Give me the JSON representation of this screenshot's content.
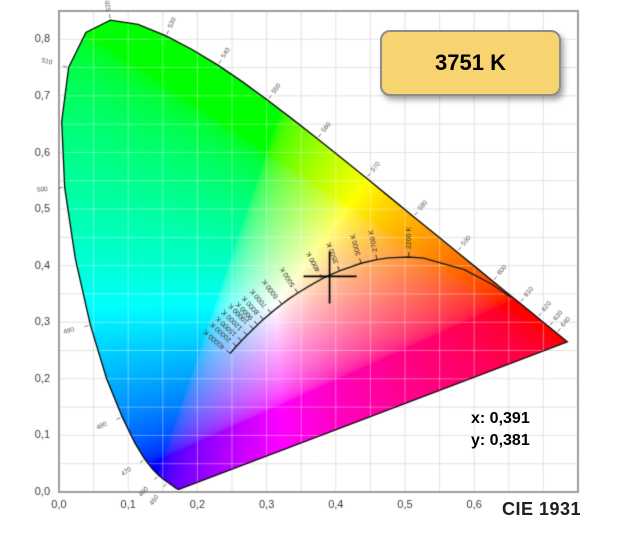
{
  "badge": {
    "label": "3751 K"
  },
  "readout": {
    "x_label": "x: 0,391",
    "y_label": "y: 0,381"
  },
  "footer": {
    "label": "CIE 1931"
  },
  "colors": {
    "badge_bg": "#F8D470",
    "badge_border": "#8C8C8C",
    "grid": "#E3E3E3",
    "frame": "#9E9E9E",
    "locus_outline": "#0A0A0A",
    "planckian_line": "#1B1B1B"
  },
  "chart_data": {
    "type": "area",
    "subtype": "cie-1931-chromaticity-diagram",
    "title": "CIE 1931",
    "xlabel": "",
    "ylabel": "",
    "xlim": [
      0,
      0.75
    ],
    "ylim": [
      0,
      0.85
    ],
    "grid_step": 0.05,
    "grid_on": true,
    "x_tick_values": [
      0,
      0.1,
      0.2,
      0.3,
      0.4,
      0.5,
      0.6
    ],
    "x_tick_labels": [
      "0,0",
      "0,1",
      "0,2",
      "0,3",
      "0,4",
      "0,5",
      "0,6"
    ],
    "y_tick_values": [
      0,
      0.1,
      0.2,
      0.3,
      0.4,
      0.5,
      0.6,
      0.7,
      0.8
    ],
    "y_tick_labels": [
      "0,0",
      "0,1",
      "0,2",
      "0,3",
      "0,4",
      "0,5",
      "0,6",
      "0,7",
      "0,8"
    ],
    "marked_point": {
      "x": 0.391,
      "y": 0.381,
      "cct_label": "3751 K"
    },
    "spectral_locus": [
      [
        380,
        0.1741,
        0.005
      ],
      [
        385,
        0.174,
        0.005
      ],
      [
        390,
        0.1738,
        0.0049
      ],
      [
        395,
        0.1736,
        0.0049
      ],
      [
        400,
        0.1733,
        0.0048
      ],
      [
        405,
        0.173,
        0.0048
      ],
      [
        410,
        0.1726,
        0.0048
      ],
      [
        415,
        0.1721,
        0.0048
      ],
      [
        420,
        0.1714,
        0.0051
      ],
      [
        425,
        0.1703,
        0.0058
      ],
      [
        430,
        0.1689,
        0.0069
      ],
      [
        435,
        0.1669,
        0.0086
      ],
      [
        440,
        0.1644,
        0.0109
      ],
      [
        445,
        0.1611,
        0.0138
      ],
      [
        450,
        0.1566,
        0.0177
      ],
      [
        455,
        0.151,
        0.0227
      ],
      [
        460,
        0.144,
        0.0297
      ],
      [
        465,
        0.1355,
        0.0399
      ],
      [
        470,
        0.1241,
        0.0578
      ],
      [
        475,
        0.1096,
        0.0868
      ],
      [
        480,
        0.0913,
        0.1327
      ],
      [
        485,
        0.0687,
        0.2007
      ],
      [
        490,
        0.0454,
        0.295
      ],
      [
        495,
        0.0235,
        0.4127
      ],
      [
        500,
        0.0082,
        0.5384
      ],
      [
        505,
        0.0039,
        0.6548
      ],
      [
        510,
        0.0139,
        0.7502
      ],
      [
        515,
        0.0389,
        0.812
      ],
      [
        520,
        0.0743,
        0.8338
      ],
      [
        525,
        0.1142,
        0.8262
      ],
      [
        530,
        0.1547,
        0.8059
      ],
      [
        535,
        0.1929,
        0.7816
      ],
      [
        540,
        0.2296,
        0.7543
      ],
      [
        545,
        0.2658,
        0.7243
      ],
      [
        550,
        0.3016,
        0.6923
      ],
      [
        555,
        0.3373,
        0.6589
      ],
      [
        560,
        0.3731,
        0.6245
      ],
      [
        565,
        0.4087,
        0.5896
      ],
      [
        570,
        0.4441,
        0.5547
      ],
      [
        575,
        0.4788,
        0.5202
      ],
      [
        580,
        0.5125,
        0.4866
      ],
      [
        585,
        0.5448,
        0.4544
      ],
      [
        590,
        0.5752,
        0.4242
      ],
      [
        595,
        0.6029,
        0.3965
      ],
      [
        600,
        0.627,
        0.3725
      ],
      [
        605,
        0.6482,
        0.3514
      ],
      [
        610,
        0.6658,
        0.334
      ],
      [
        615,
        0.6801,
        0.3197
      ],
      [
        620,
        0.6915,
        0.3083
      ],
      [
        625,
        0.7006,
        0.2993
      ],
      [
        630,
        0.7079,
        0.292
      ],
      [
        635,
        0.714,
        0.2859
      ],
      [
        640,
        0.719,
        0.2809
      ],
      [
        645,
        0.723,
        0.277
      ],
      [
        650,
        0.726,
        0.274
      ],
      [
        660,
        0.73,
        0.27
      ],
      [
        670,
        0.732,
        0.268
      ],
      [
        680,
        0.7334,
        0.2666
      ],
      [
        700,
        0.7347,
        0.2653
      ]
    ],
    "wavelength_labels": [
      450,
      460,
      470,
      480,
      490,
      500,
      510,
      520,
      530,
      540,
      550,
      560,
      570,
      580,
      590,
      600,
      610,
      620,
      630,
      640
    ],
    "planckian_locus": [
      [
        1000,
        0.6528,
        0.3444
      ],
      [
        1200,
        0.6249,
        0.3676
      ],
      [
        1500,
        0.5857,
        0.3931
      ],
      [
        2000,
        0.5269,
        0.4133
      ],
      [
        2200,
        0.5054,
        0.4152
      ],
      [
        2500,
        0.4765,
        0.4137
      ],
      [
        2700,
        0.4593,
        0.4106
      ],
      [
        3000,
        0.4366,
        0.4042
      ],
      [
        3500,
        0.4053,
        0.3909
      ],
      [
        3751,
        0.3922,
        0.3837
      ],
      [
        4000,
        0.3805,
        0.3769
      ],
      [
        4500,
        0.3607,
        0.3634
      ],
      [
        5000,
        0.345,
        0.3517
      ],
      [
        5500,
        0.3323,
        0.3412
      ],
      [
        6000,
        0.322,
        0.3318
      ],
      [
        6500,
        0.3135,
        0.3237
      ],
      [
        7000,
        0.3064,
        0.3165
      ],
      [
        8000,
        0.2952,
        0.3048
      ],
      [
        9000,
        0.287,
        0.2956
      ],
      [
        10000,
        0.2807,
        0.2882
      ],
      [
        12000,
        0.2718,
        0.2776
      ],
      [
        15000,
        0.2637,
        0.2673
      ],
      [
        20000,
        0.2564,
        0.2576
      ],
      [
        30000,
        0.25,
        0.2488
      ],
      [
        40000,
        0.2472,
        0.2449
      ]
    ],
    "temperature_labels": [
      {
        "t": 2200,
        "label": "2200 K"
      },
      {
        "t": 2700,
        "label": "2700 K"
      },
      {
        "t": 3000,
        "label": "3000 K"
      },
      {
        "t": 3500,
        "label": "3500 K"
      },
      {
        "t": 4000,
        "label": "4000 K"
      },
      {
        "t": 5000,
        "label": "5000 K"
      },
      {
        "t": 6000,
        "label": "6000 K"
      },
      {
        "t": 7000,
        "label": "7000 K"
      },
      {
        "t": 8000,
        "label": "8000 K"
      },
      {
        "t": 9000,
        "label": "9000 K"
      },
      {
        "t": 10000,
        "label": "10000 K"
      },
      {
        "t": 12000,
        "label": "12000 K"
      },
      {
        "t": 15000,
        "label": "15000 K"
      },
      {
        "t": 20000,
        "label": "20000 K"
      },
      {
        "t": 40000,
        "label": "40000 K"
      }
    ]
  }
}
